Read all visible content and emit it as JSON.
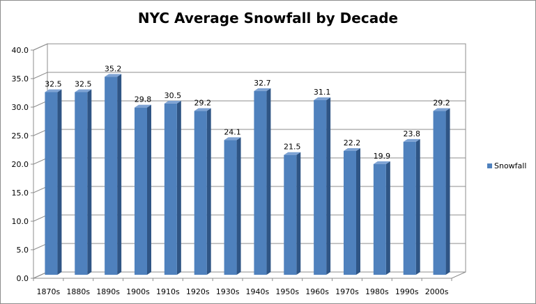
{
  "chart_data": {
    "type": "bar",
    "title": "NYC Average Snowfall by Decade",
    "categories": [
      "1870s",
      "1880s",
      "1890s",
      "1900s",
      "1910s",
      "1920s",
      "1930s",
      "1940s",
      "1950s",
      "1960s",
      "1970s",
      "1980s",
      "1990s",
      "2000s"
    ],
    "series": [
      {
        "name": "Snowfall",
        "values": [
          32.5,
          32.5,
          35.2,
          29.8,
          30.5,
          29.2,
          24.1,
          32.7,
          21.5,
          31.1,
          22.2,
          19.9,
          23.8,
          29.2
        ]
      }
    ],
    "ylim": [
      0,
      40
    ],
    "yticks": [
      "0.0",
      "5.0",
      "10.0",
      "15.0",
      "20.0",
      "25.0",
      "30.0",
      "35.0",
      "40.0"
    ],
    "grid": true,
    "legend_position": "right",
    "bar_style": "3d-column",
    "colors": {
      "bar_front": "#4f81bd",
      "bar_side": "#2f5585",
      "bar_top": "#7ea3d4",
      "gridline": "#8c8c8c",
      "wall": "#ffffff"
    }
  }
}
